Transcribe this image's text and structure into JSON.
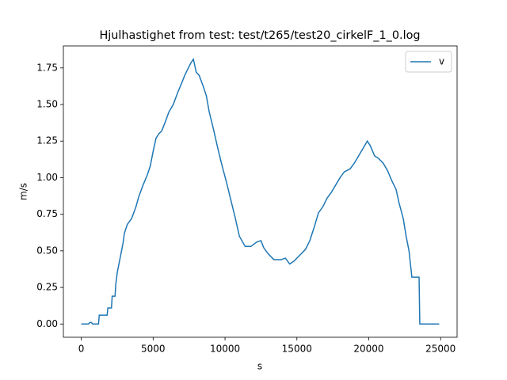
{
  "chart_data": {
    "type": "line",
    "title": "Hjulhastighet from test: test/t265/test20_cirkelF_1_0.log",
    "x_label": "s",
    "y_label": "m/s",
    "x": [
      0,
      500,
      600,
      700,
      800,
      1200,
      1250,
      1800,
      1850,
      2100,
      2150,
      2350,
      2400,
      2500,
      2700,
      2900,
      3000,
      3200,
      3500,
      3800,
      4000,
      4300,
      4600,
      4800,
      5000,
      5200,
      5400,
      5600,
      5800,
      6100,
      6400,
      6700,
      7000,
      7200,
      7400,
      7600,
      7800,
      8000,
      8200,
      8500,
      8700,
      8900,
      9200,
      9500,
      9800,
      10100,
      10400,
      10700,
      11000,
      11400,
      11800,
      12200,
      12500,
      12700,
      13000,
      13400,
      13900,
      14200,
      14500,
      14800,
      15200,
      15600,
      15900,
      16200,
      16500,
      16800,
      17100,
      17400,
      17700,
      18000,
      18300,
      18700,
      19000,
      19300,
      19600,
      19900,
      20100,
      20400,
      20700,
      21000,
      21300,
      21600,
      21900,
      22100,
      22400,
      22600,
      22800,
      23000,
      23500,
      23550,
      24900
    ],
    "series": [
      {
        "name": "v",
        "color": "#1f77b4",
        "values": [
          0,
          0,
          0.01,
          0.01,
          0,
          0,
          0.06,
          0.06,
          0.11,
          0.11,
          0.19,
          0.19,
          0.27,
          0.35,
          0.45,
          0.55,
          0.62,
          0.68,
          0.72,
          0.8,
          0.87,
          0.95,
          1.02,
          1.08,
          1.18,
          1.27,
          1.3,
          1.32,
          1.37,
          1.45,
          1.5,
          1.58,
          1.65,
          1.7,
          1.74,
          1.78,
          1.81,
          1.72,
          1.7,
          1.62,
          1.56,
          1.45,
          1.33,
          1.2,
          1.08,
          0.97,
          0.85,
          0.73,
          0.6,
          0.53,
          0.53,
          0.56,
          0.57,
          0.52,
          0.48,
          0.44,
          0.44,
          0.45,
          0.41,
          0.43,
          0.47,
          0.51,
          0.57,
          0.66,
          0.76,
          0.8,
          0.86,
          0.9,
          0.95,
          1.0,
          1.04,
          1.06,
          1.1,
          1.15,
          1.2,
          1.25,
          1.22,
          1.15,
          1.13,
          1.1,
          1.05,
          0.98,
          0.92,
          0.83,
          0.72,
          0.6,
          0.5,
          0.32,
          0.32,
          0,
          0
        ]
      }
    ],
    "xlim": [
      -1245,
      26145
    ],
    "ylim": [
      -0.0905,
      1.9005
    ],
    "xticks": [
      0,
      5000,
      10000,
      15000,
      20000,
      25000
    ],
    "yticks": [
      {
        "value": 0,
        "label": "0.00"
      },
      {
        "value": 0.25,
        "label": "0.25"
      },
      {
        "value": 0.5,
        "label": "0.50"
      },
      {
        "value": 0.75,
        "label": "0.75"
      },
      {
        "value": 1,
        "label": "1.00"
      },
      {
        "value": 1.25,
        "label": "1.25"
      },
      {
        "value": 1.5,
        "label": "1.50"
      },
      {
        "value": 1.75,
        "label": "1.75"
      }
    ],
    "legend": "upper right",
    "grid": false
  }
}
